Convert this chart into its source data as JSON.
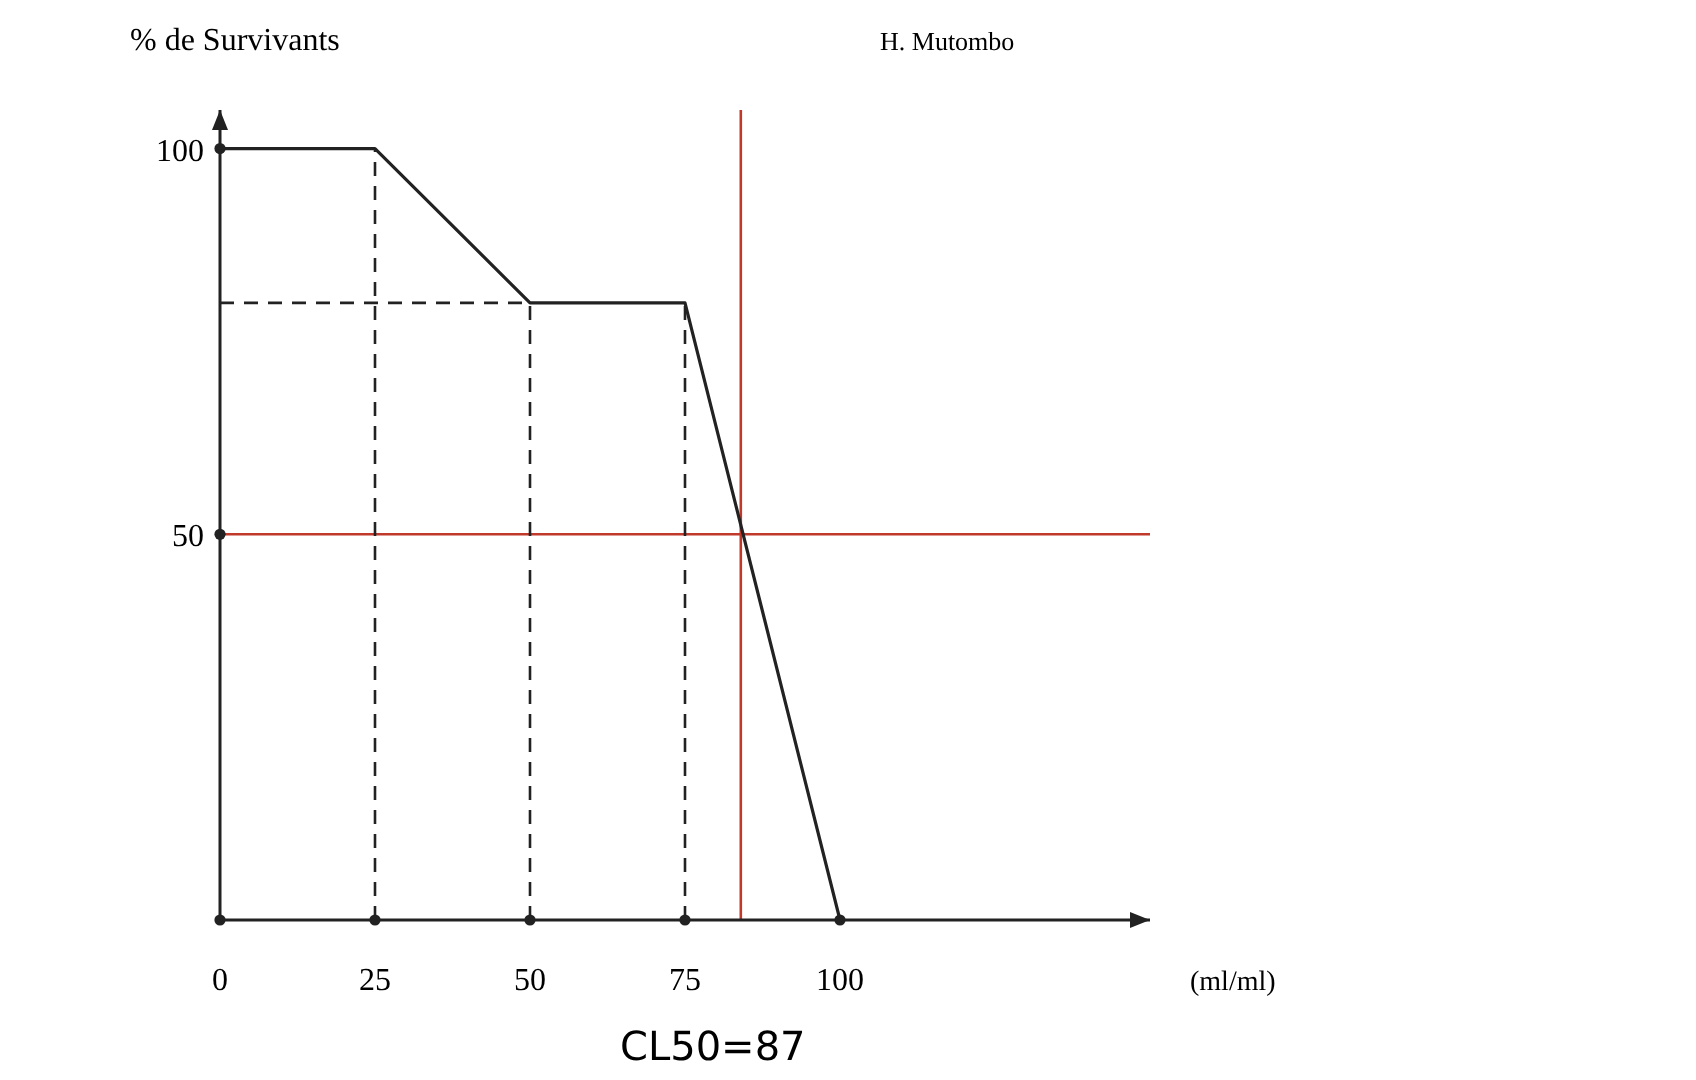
{
  "chart_data": {
    "type": "line",
    "ylabel": "% de Survivants",
    "xlabel": "(ml/ml)",
    "x": [
      0,
      25,
      50,
      75,
      100
    ],
    "series": [
      {
        "color": "#222222",
        "values": [
          100,
          100,
          80,
          80,
          0
        ]
      },
      {
        "type": "scatter",
        "marker": "circle",
        "color": "#222222",
        "x": [
          0,
          25,
          50,
          75,
          100,
          0,
          0
        ],
        "values": [
          0,
          0,
          0,
          0,
          0,
          50,
          100
        ]
      }
    ],
    "xlim": [
      0,
      150
    ],
    "ylim": [
      0,
      105
    ],
    "xticks": [
      0,
      25,
      50,
      75,
      100
    ],
    "yticks": [
      50,
      100
    ],
    "ref_lines": [
      {
        "axis": "y",
        "value": 50,
        "color": "#c0392b",
        "line_style": "solid"
      },
      {
        "axis": "x",
        "value": 84,
        "color": "#c0392b",
        "line_style": "solid"
      },
      {
        "axis": "x",
        "value": 25,
        "color": "#222222",
        "line_style": "dashed"
      },
      {
        "axis": "x",
        "value": 50,
        "color": "#222222",
        "line_style": "dashed"
      },
      {
        "axis": "x",
        "value": 75,
        "color": "#222222",
        "line_style": "dashed"
      },
      {
        "axis": "y",
        "value": 80,
        "color": "#222222",
        "line_style": "dashed"
      }
    ],
    "annotations": [
      "H. Mutombo",
      "CL50=87"
    ]
  }
}
